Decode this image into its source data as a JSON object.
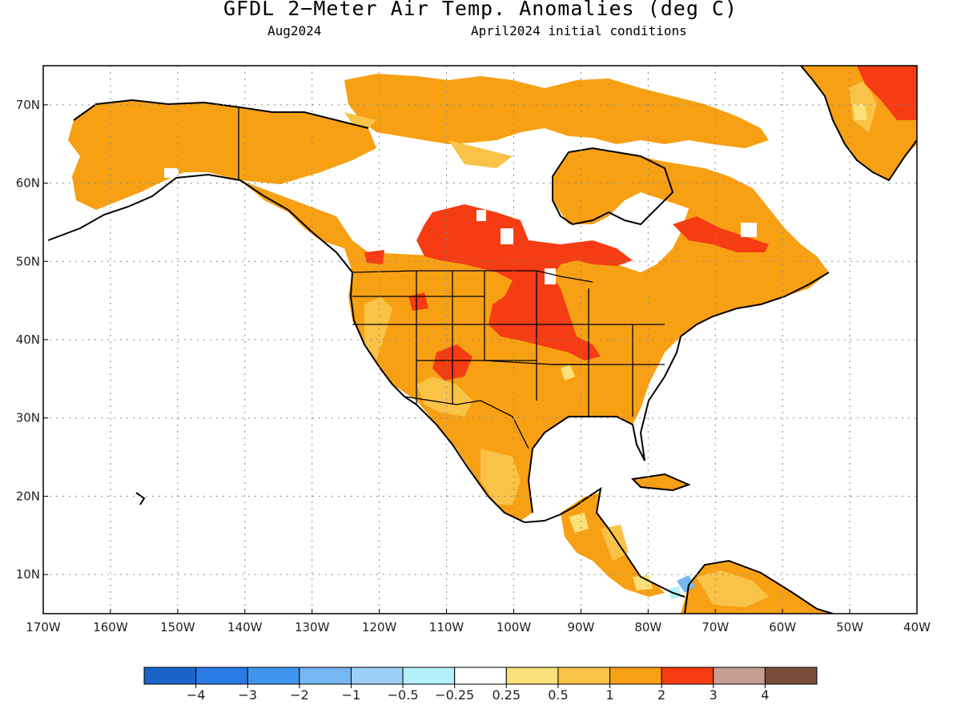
{
  "header": {
    "title": "GFDL 2−Meter Air Temp. Anomalies (deg C)",
    "subtitle_left": "Aug2024",
    "subtitle_right": "April2024 initial conditions"
  },
  "map": {
    "projection": "equirectangular",
    "lon_range": [
      -170,
      -40
    ],
    "lat_range": [
      5,
      75
    ],
    "lat_ticks": [
      "10N",
      "20N",
      "30N",
      "40N",
      "50N",
      "60N",
      "70N"
    ],
    "lat_tick_values": [
      10,
      20,
      30,
      40,
      50,
      60,
      70
    ],
    "lon_ticks": [
      "170W",
      "160W",
      "150W",
      "140W",
      "130W",
      "120W",
      "110W",
      "100W",
      "90W",
      "80W",
      "70W",
      "60W",
      "50W",
      "40W"
    ],
    "lon_tick_values": [
      -170,
      -160,
      -150,
      -140,
      -130,
      -120,
      -110,
      -100,
      -90,
      -80,
      -70,
      -60,
      -50,
      -40
    ],
    "grid": "dotted",
    "field": "2-meter air temperature anomaly",
    "region": "North America"
  },
  "colorbar": {
    "labels": [
      "−4",
      "−3",
      "−2",
      "−1",
      "−0.5",
      "−0.25",
      "0.25",
      "0.5",
      "1",
      "2",
      "3",
      "4"
    ],
    "colors": [
      "#1a64c8",
      "#2b7be6",
      "#4195ee",
      "#77b6f4",
      "#9ccff7",
      "#b4f0fa",
      "#ffffff",
      "#fce07a",
      "#f9c347",
      "#f7a014",
      "#f53c12",
      "#c69d93",
      "#7a4d3a"
    ]
  }
}
